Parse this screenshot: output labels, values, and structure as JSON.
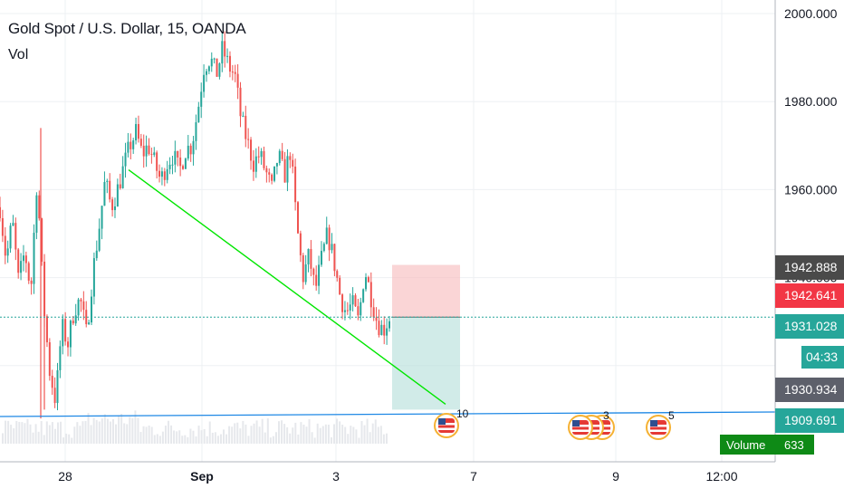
{
  "header": {
    "title": "Gold Spot / U.S. Dollar, 15, OANDA",
    "indicator": "Vol"
  },
  "colors": {
    "up": "#26a69a",
    "down": "#ef5350",
    "trendline": "#00e600",
    "hline": "#1e88e5",
    "grid": "#eef0f3",
    "axis_bg": "#ffffff"
  },
  "chart_data": {
    "type": "candlestick",
    "title": "Gold Spot / U.S. Dollar, 15, OANDA",
    "ylim": [
      1903,
      2004
    ],
    "y_ticks": [
      "2000.000",
      "1980.000",
      "1960.000",
      "1940.000"
    ],
    "x_ticks": [
      "28",
      "Sep",
      "3",
      "7",
      "9",
      "12:00"
    ],
    "price_path": [
      1956,
      1944,
      1953,
      1939,
      1946,
      1937,
      1963,
      1935,
      1919,
      1912,
      1929,
      1925,
      1933,
      1935,
      1927,
      1941,
      1951,
      1962,
      1956,
      1960,
      1965,
      1970,
      1973,
      1968,
      1970,
      1966,
      1962,
      1966,
      1968,
      1964,
      1969,
      1970,
      1978,
      1988,
      1990,
      1986,
      1992,
      1988,
      1986,
      1976,
      1971,
      1966,
      1968,
      1964,
      1960,
      1968,
      1963,
      1969,
      1952,
      1940,
      1945,
      1937,
      1944,
      1950,
      1944,
      1936,
      1932,
      1934,
      1930,
      1942,
      1936,
      1930,
      1928,
      1931
    ],
    "price_lines": [
      {
        "label": "1942.888",
        "value": 1942.888,
        "color": "#4a4a4a"
      },
      {
        "label": "1942.641",
        "value": 1942.641,
        "color": "#f23645"
      },
      {
        "label": "1931.028",
        "value": 1931.028,
        "color": "#26a69a",
        "dotted": true
      },
      {
        "label": "1930.934",
        "value": 1930.934,
        "color": "#5d606b"
      },
      {
        "label": "1909.691",
        "value": 1909.691,
        "color": "#26a69a"
      }
    ],
    "countdown": "04:33",
    "volume_tag": {
      "label": "Volume",
      "value": "633"
    },
    "trendline": {
      "from": {
        "x": "Aug 30",
        "y": 1964.5
      },
      "to": {
        "x": "Sep 4",
        "y": 1910
      }
    },
    "horizontal_line": {
      "y": 1909.5
    },
    "position": {
      "entry": 1931.028,
      "stop": 1942.888,
      "target": 1910
    },
    "events": [
      {
        "label": "10"
      },
      {
        "label": "3"
      },
      {
        "label": "5"
      }
    ]
  }
}
